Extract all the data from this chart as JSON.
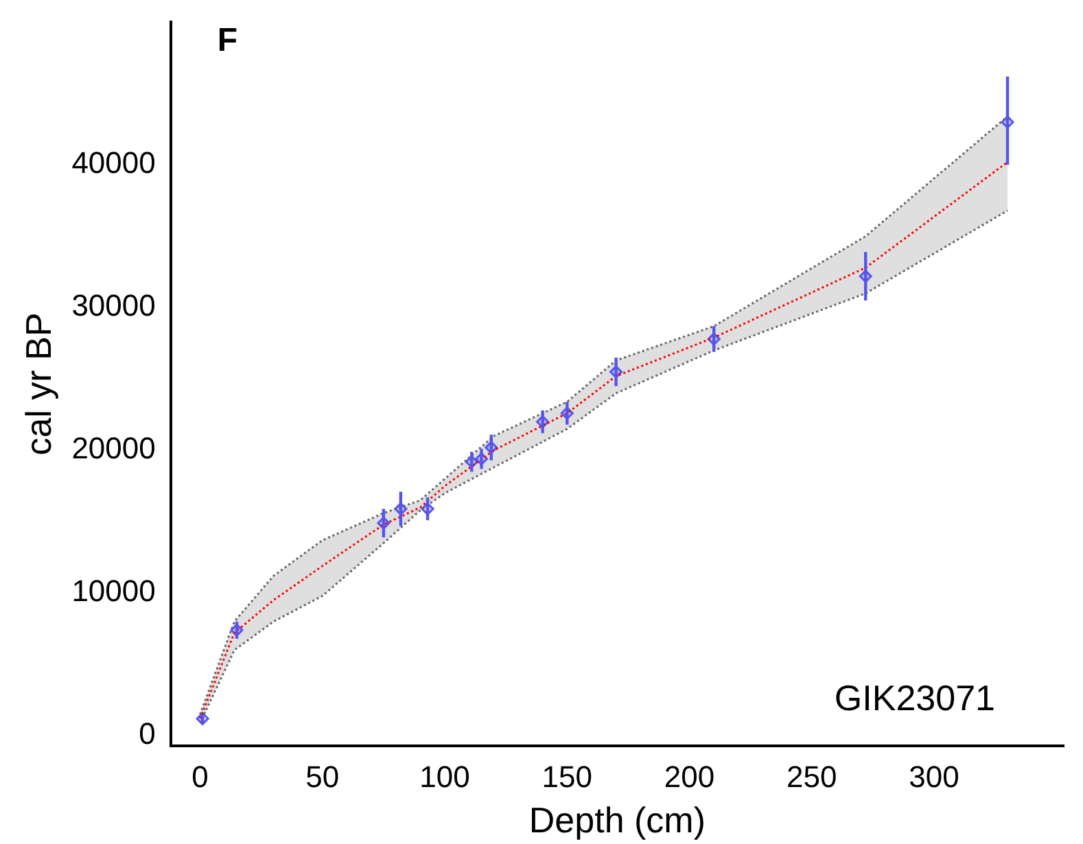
{
  "chart_data": {
    "type": "scatter",
    "xlabel": "Depth (cm)",
    "ylabel": "cal yr BP",
    "annotations": [
      "F",
      "GIK23071"
    ],
    "xlim": [
      -12,
      353
    ],
    "xticks": [
      0,
      50,
      100,
      150,
      200,
      250,
      300
    ],
    "ylim": [
      -700,
      50000
    ],
    "yticks": [
      0,
      10000,
      20000,
      30000,
      40000
    ],
    "grid": false,
    "legend": false,
    "series": [
      {
        "type": "line",
        "color": "#666666",
        "line_style": "dotted",
        "marker": "none",
        "x": [
          0,
          14,
          30,
          50,
          75,
          90,
          100,
          120,
          150,
          170,
          210,
          272,
          330
        ],
        "values": [
          1500,
          8000,
          11200,
          13700,
          15600,
          16500,
          18000,
          21000,
          23400,
          26300,
          28700,
          35000,
          43400
        ]
      },
      {
        "type": "line",
        "color": "#666666",
        "line_style": "dotted",
        "marker": "none",
        "x": [
          0,
          14,
          30,
          50,
          75,
          90,
          100,
          120,
          150,
          170,
          210,
          272,
          330
        ],
        "values": [
          900,
          6000,
          8000,
          9800,
          13500,
          15800,
          17000,
          18800,
          21500,
          24000,
          27000,
          31000,
          36800
        ]
      },
      {
        "type": "line",
        "color": "#ff0000",
        "line_style": "dotted",
        "marker": "none",
        "x": [
          0,
          14,
          30,
          50,
          75,
          90,
          100,
          120,
          150,
          170,
          210,
          272,
          330
        ],
        "values": [
          1200,
          7200,
          9500,
          11900,
          14800,
          16000,
          17500,
          20000,
          22600,
          25200,
          27900,
          32800,
          40200
        ],
        "lower": [
          900,
          6000,
          8000,
          9800,
          13500,
          15800,
          17000,
          18800,
          21500,
          24000,
          27000,
          31000,
          36800
        ],
        "upper": [
          1500,
          8000,
          11200,
          13700,
          15600,
          16500,
          18000,
          21000,
          23400,
          26300,
          28700,
          35000,
          43400
        ]
      },
      {
        "color": "#5555ee",
        "marker": "diamond",
        "x": [
          1,
          15,
          75,
          82,
          93,
          111,
          115,
          119,
          140,
          150,
          170,
          210,
          272,
          330
        ],
        "values": [
          1200,
          7400,
          14900,
          15900,
          15900,
          19200,
          19400,
          20200,
          22000,
          22600,
          25500,
          27800,
          32200,
          43000
        ],
        "errors": [
          300,
          600,
          1000,
          1200,
          800,
          700,
          700,
          900,
          800,
          800,
          1000,
          900,
          1700,
          [
            40000,
            46200
          ]
        ]
      }
    ]
  }
}
